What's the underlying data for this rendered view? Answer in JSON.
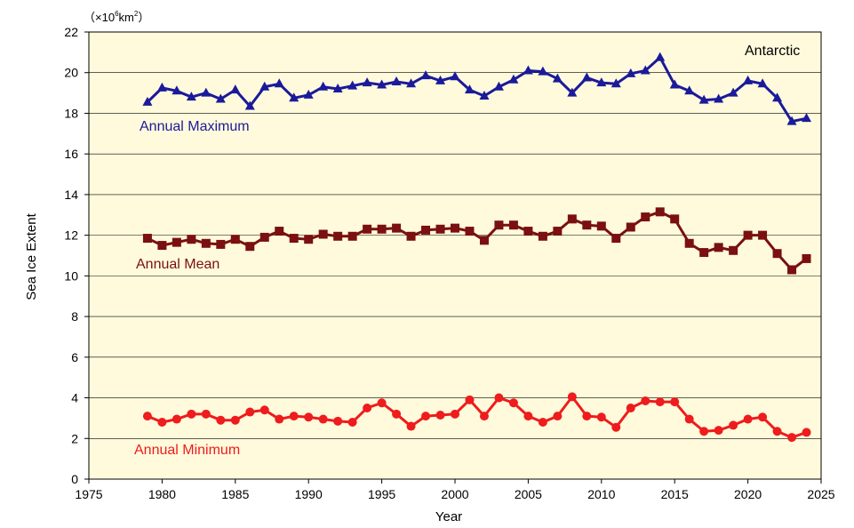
{
  "chart_data": {
    "type": "line",
    "region_label": "Antarctic",
    "unit_prefix": "（×10",
    "unit_exp": "6",
    "unit_mid": "km",
    "unit_exp2": "2",
    "unit_suffix": "）",
    "xlabel": "Year",
    "ylabel": "Sea Ice Extent",
    "xlim": [
      1975,
      2025
    ],
    "ylim": [
      0,
      22
    ],
    "xticks": [
      1975,
      1980,
      1985,
      1990,
      1995,
      2000,
      2005,
      2010,
      2015,
      2020,
      2025
    ],
    "yticks": [
      0,
      2,
      4,
      6,
      8,
      10,
      12,
      14,
      16,
      18,
      20,
      22
    ],
    "grid": true,
    "plot_background": "#fffadc",
    "years": [
      1979,
      1980,
      1981,
      1982,
      1983,
      1984,
      1985,
      1986,
      1987,
      1988,
      1989,
      1990,
      1991,
      1992,
      1993,
      1994,
      1995,
      1996,
      1997,
      1998,
      1999,
      2000,
      2001,
      2002,
      2003,
      2004,
      2005,
      2006,
      2007,
      2008,
      2009,
      2010,
      2011,
      2012,
      2013,
      2014,
      2015,
      2016,
      2017,
      2018,
      2019,
      2020,
      2021,
      2022,
      2023,
      2024
    ],
    "series": [
      {
        "name": "Annual Maximum",
        "marker": "triangle",
        "color": "#1a1a9a",
        "values": [
          18.55,
          19.25,
          19.1,
          18.8,
          19.0,
          18.7,
          19.15,
          18.35,
          19.3,
          19.45,
          18.75,
          18.9,
          19.3,
          19.2,
          19.35,
          19.5,
          19.4,
          19.55,
          19.45,
          19.85,
          19.6,
          19.8,
          19.15,
          18.85,
          19.3,
          19.65,
          20.1,
          20.05,
          19.7,
          19.0,
          19.75,
          19.5,
          19.45,
          19.95,
          20.1,
          20.75,
          19.4,
          19.1,
          18.65,
          18.7,
          19.0,
          19.6,
          19.45,
          18.75,
          17.6,
          17.75
        ]
      },
      {
        "name": "Annual Mean",
        "marker": "square",
        "color": "#7a1010",
        "values": [
          11.85,
          11.5,
          11.65,
          11.8,
          11.6,
          11.55,
          11.8,
          11.45,
          11.9,
          12.2,
          11.85,
          11.8,
          12.05,
          11.95,
          11.95,
          12.3,
          12.3,
          12.35,
          11.95,
          12.25,
          12.3,
          12.35,
          12.2,
          11.75,
          12.5,
          12.5,
          12.2,
          11.95,
          12.2,
          12.8,
          12.5,
          12.45,
          11.85,
          12.4,
          12.9,
          13.15,
          12.8,
          11.6,
          11.15,
          11.4,
          11.25,
          12.0,
          12.0,
          11.1,
          10.3,
          10.85
        ]
      },
      {
        "name": "Annual Minimum",
        "marker": "circle",
        "color": "#ee1c1c",
        "values": [
          3.1,
          2.8,
          2.95,
          3.2,
          3.2,
          2.9,
          2.9,
          3.3,
          3.4,
          2.95,
          3.1,
          3.05,
          2.95,
          2.85,
          2.8,
          3.5,
          3.75,
          3.2,
          2.6,
          3.1,
          3.15,
          3.2,
          3.9,
          3.1,
          4.0,
          3.75,
          3.1,
          2.8,
          3.1,
          4.05,
          3.1,
          3.05,
          2.55,
          3.5,
          3.85,
          3.8,
          3.8,
          2.95,
          2.35,
          2.4,
          2.65,
          2.95,
          3.05,
          2.35,
          2.05,
          2.3
        ]
      }
    ]
  }
}
